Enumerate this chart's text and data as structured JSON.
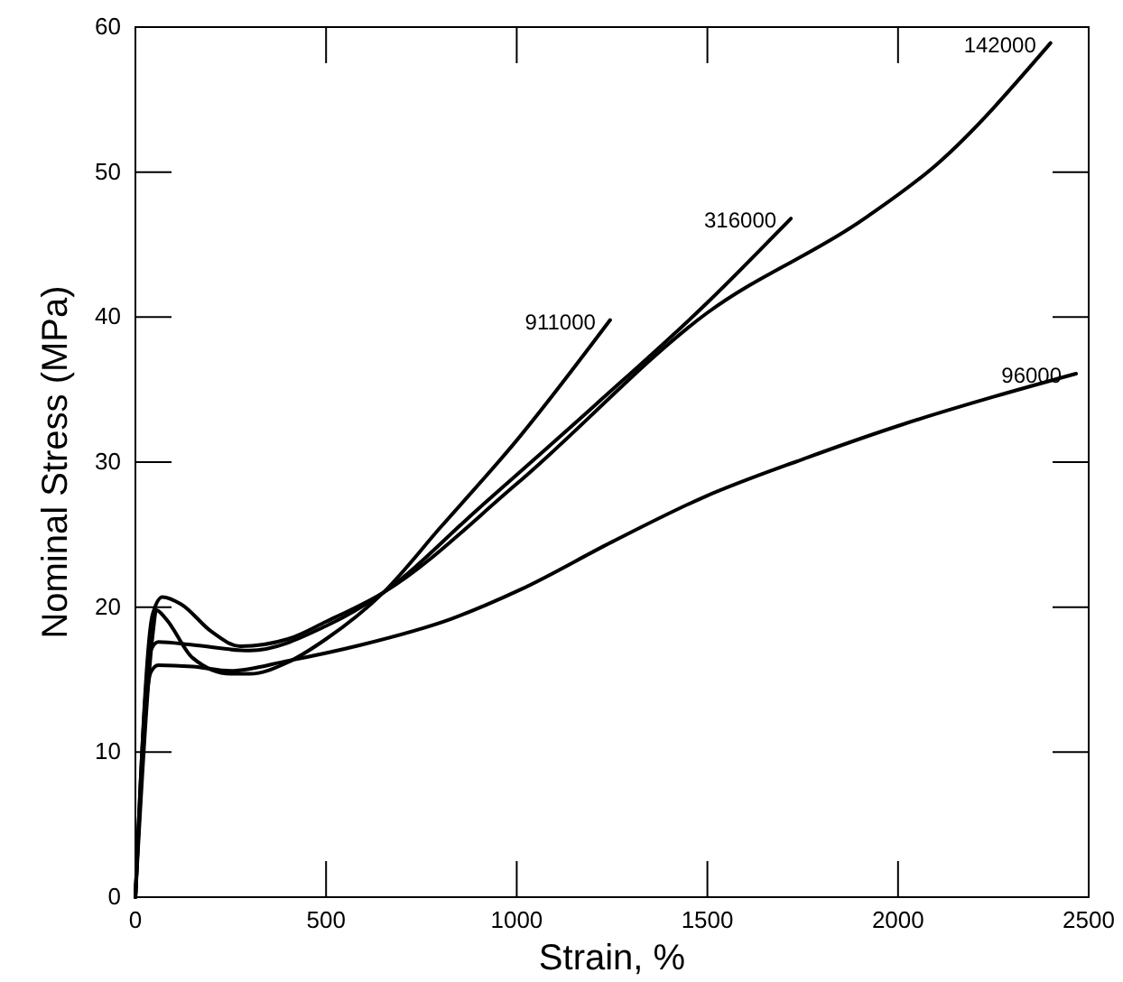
{
  "chart_data": {
    "type": "line",
    "xlabel": "Strain, %",
    "ylabel": "Nominal Stress (MPa)",
    "xlim": [
      0,
      2500
    ],
    "xticks": [
      0,
      500,
      1000,
      1500,
      2000,
      2500
    ],
    "ylim": [
      0,
      60
    ],
    "yticks": [
      0,
      10,
      20,
      30,
      40,
      50,
      60
    ],
    "grid": false,
    "marker": "none",
    "line_style": "solid",
    "series": [
      {
        "name": "911000",
        "color": "#000000",
        "x": [
          0,
          45,
          55,
          80,
          150,
          250,
          300,
          400,
          500,
          650,
          800,
          1000,
          1245
        ],
        "values": [
          0,
          18,
          19.8,
          19.2,
          16.5,
          15.4,
          15.4,
          16.2,
          17.8,
          21,
          25.5,
          31.5,
          39.8
        ]
      },
      {
        "name": "316000",
        "color": "#000000",
        "x": [
          0,
          40,
          60,
          150,
          300,
          500,
          650,
          900,
          1200,
          1500,
          1719
        ],
        "values": [
          0,
          17,
          17.6,
          17.4,
          17,
          18.7,
          21,
          26.8,
          33.8,
          41,
          46.8
        ]
      },
      {
        "name": "142000",
        "color": "#000000",
        "x": [
          0,
          45,
          71,
          120,
          200,
          275,
          400,
          500,
          650,
          1000,
          1500,
          1918,
          2100,
          2400
        ],
        "values": [
          0,
          19.5,
          20.7,
          20.2,
          18.3,
          17.3,
          17.8,
          19,
          21,
          28.5,
          40.3,
          46.9,
          50.5,
          58.9
        ]
      },
      {
        "name": "96000",
        "color": "#000000",
        "x": [
          0,
          40,
          60,
          150,
          250,
          400,
          592,
          829,
          1009,
          1250,
          1492,
          1750,
          2012,
          2250,
          2467
        ],
        "values": [
          0,
          15.5,
          16,
          15.9,
          15.6,
          16.3,
          17.4,
          19.2,
          21.2,
          24.5,
          27.6,
          30.2,
          32.6,
          34.5,
          36.1
        ]
      }
    ]
  }
}
